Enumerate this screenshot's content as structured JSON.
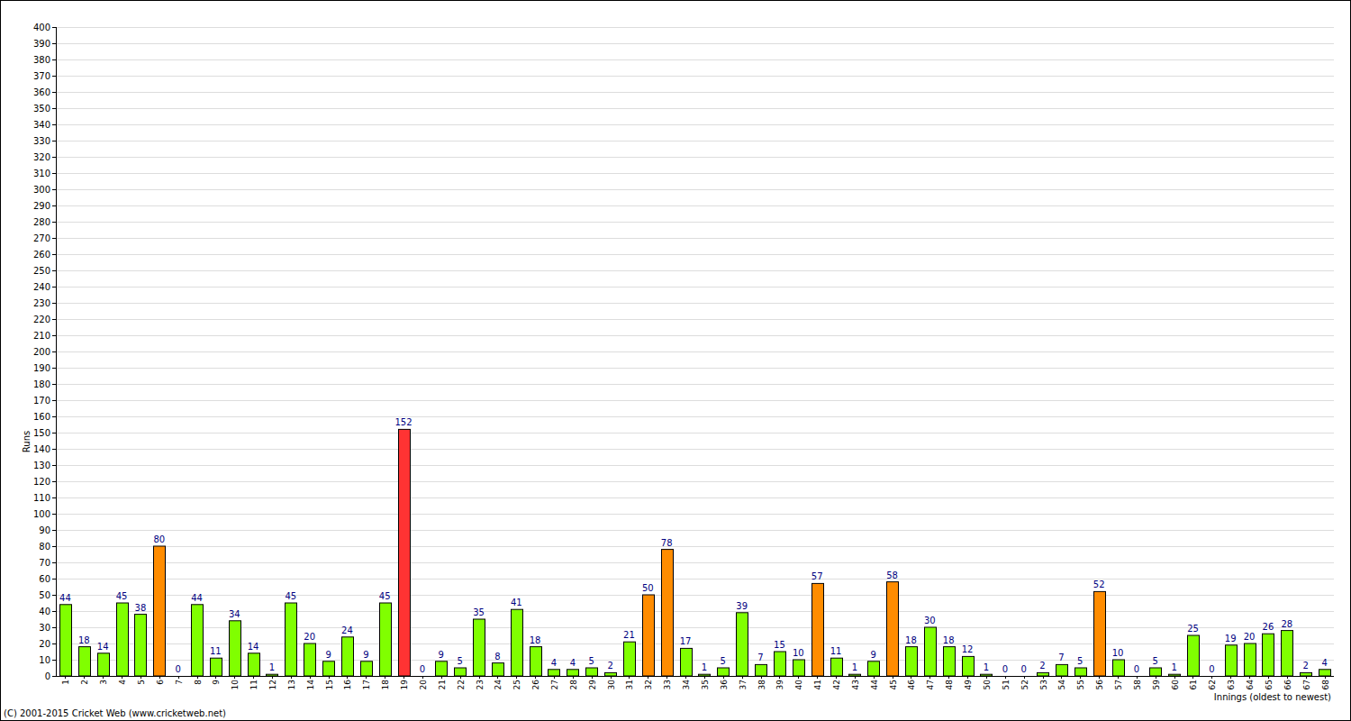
{
  "chart_data": {
    "type": "bar",
    "x_label": "Innings (oldest to newest)",
    "y_label": "Runs",
    "annotations": [
      "(C) 2001-2015 Cricket Web (www.cricketweb.net)"
    ],
    "categories": [
      "1",
      "2",
      "3",
      "4",
      "5",
      "6",
      "7",
      "8",
      "9",
      "10",
      "11",
      "12",
      "13",
      "14",
      "15",
      "16",
      "17",
      "18",
      "19",
      "20",
      "21",
      "22",
      "23",
      "24",
      "25",
      "26",
      "27",
      "28",
      "29",
      "30",
      "31",
      "32",
      "33",
      "34",
      "35",
      "36",
      "37",
      "38",
      "39",
      "40",
      "41",
      "42",
      "43",
      "44",
      "45",
      "46",
      "47",
      "48",
      "49",
      "50",
      "51",
      "52",
      "53",
      "54",
      "55",
      "56",
      "57",
      "58",
      "59",
      "60",
      "61",
      "62",
      "63",
      "64",
      "65",
      "66",
      "67",
      "68"
    ],
    "values": [
      44,
      18,
      14,
      45,
      38,
      80,
      0,
      44,
      11,
      34,
      14,
      1,
      45,
      20,
      9,
      24,
      9,
      45,
      152,
      0,
      9,
      5,
      35,
      8,
      41,
      18,
      4,
      4,
      5,
      2,
      21,
      50,
      78,
      17,
      1,
      5,
      39,
      7,
      15,
      10,
      57,
      11,
      1,
      9,
      58,
      18,
      30,
      18,
      12,
      1,
      0,
      0,
      2,
      7,
      5,
      52,
      10,
      0,
      5,
      1,
      25,
      0,
      19,
      20,
      26,
      28,
      2,
      4
    ],
    "colors": [
      "#80ff00",
      "#80ff00",
      "#80ff00",
      "#80ff00",
      "#80ff00",
      "#ff8c00",
      "#80ff00",
      "#80ff00",
      "#80ff00",
      "#80ff00",
      "#80ff00",
      "#80ff00",
      "#80ff00",
      "#80ff00",
      "#80ff00",
      "#80ff00",
      "#80ff00",
      "#80ff00",
      "#ff3333",
      "#80ff00",
      "#80ff00",
      "#80ff00",
      "#80ff00",
      "#80ff00",
      "#80ff00",
      "#80ff00",
      "#80ff00",
      "#80ff00",
      "#80ff00",
      "#80ff00",
      "#80ff00",
      "#ff8c00",
      "#ff8c00",
      "#80ff00",
      "#80ff00",
      "#80ff00",
      "#80ff00",
      "#80ff00",
      "#80ff00",
      "#80ff00",
      "#ff8c00",
      "#80ff00",
      "#80ff00",
      "#80ff00",
      "#ff8c00",
      "#80ff00",
      "#80ff00",
      "#80ff00",
      "#80ff00",
      "#80ff00",
      "#80ff00",
      "#80ff00",
      "#80ff00",
      "#80ff00",
      "#80ff00",
      "#ff8c00",
      "#80ff00",
      "#80ff00",
      "#80ff00",
      "#80ff00",
      "#80ff00",
      "#80ff00",
      "#80ff00",
      "#80ff00",
      "#80ff00",
      "#80ff00",
      "#80ff00",
      "#80ff00"
    ],
    "ylim": [
      0,
      400
    ],
    "yticks": [
      0,
      10,
      20,
      30,
      40,
      50,
      60,
      70,
      80,
      90,
      100,
      110,
      120,
      130,
      140,
      150,
      160,
      170,
      180,
      190,
      200,
      210,
      220,
      230,
      240,
      250,
      260,
      270,
      280,
      290,
      300,
      310,
      320,
      330,
      340,
      350,
      360,
      370,
      380,
      390,
      400
    ],
    "grid": true,
    "data_labels": true
  }
}
